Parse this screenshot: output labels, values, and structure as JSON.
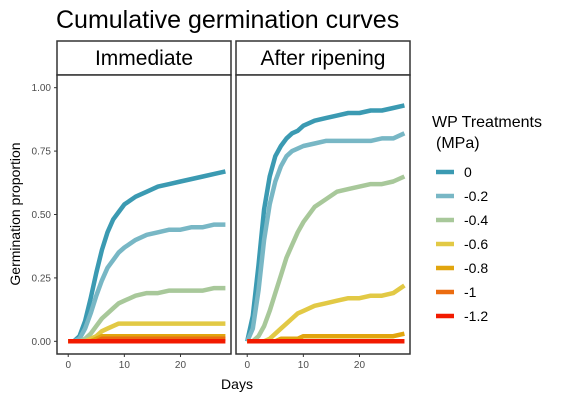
{
  "chart_data": {
    "type": "line",
    "title": "Cumulative germination curves",
    "xlabel": "Days",
    "ylabel": "Germination proportion",
    "xlim": [
      -2,
      29
    ],
    "ylim": [
      -0.05,
      1.05
    ],
    "x_ticks": [
      0,
      10,
      20
    ],
    "y_ticks": [
      0,
      0.25,
      0.5,
      0.75,
      1
    ],
    "y_tick_labels": [
      "0.00",
      "0.25",
      "0.50",
      "0.75",
      "1.00"
    ],
    "grid": false,
    "legend": {
      "title_line1": "WP Treatments",
      "title_line2": "(MPa)",
      "position": "right"
    },
    "days": [
      0,
      1,
      2,
      3,
      4,
      5,
      6,
      7,
      8,
      9,
      10,
      12,
      14,
      16,
      18,
      20,
      22,
      24,
      26,
      28
    ],
    "panels": [
      {
        "strip": "Immediate",
        "series": [
          {
            "name": "0",
            "color": "#3b9ab2",
            "values": [
              0,
              0,
              0.02,
              0.08,
              0.17,
              0.27,
              0.36,
              0.43,
              0.48,
              0.51,
              0.54,
              0.57,
              0.59,
              0.61,
              0.62,
              0.63,
              0.64,
              0.65,
              0.66,
              0.67
            ]
          },
          {
            "name": "-0.2",
            "color": "#78b7c5",
            "values": [
              0,
              0,
              0.01,
              0.05,
              0.11,
              0.18,
              0.24,
              0.29,
              0.32,
              0.35,
              0.37,
              0.4,
              0.42,
              0.43,
              0.44,
              0.44,
              0.45,
              0.45,
              0.46,
              0.46
            ]
          },
          {
            "name": "-0.4",
            "color": "#a8c89a",
            "values": [
              0,
              0,
              0,
              0.01,
              0.03,
              0.06,
              0.09,
              0.11,
              0.13,
              0.15,
              0.16,
              0.18,
              0.19,
              0.19,
              0.2,
              0.2,
              0.2,
              0.2,
              0.21,
              0.21
            ]
          },
          {
            "name": "-0.6",
            "color": "#e2c945",
            "values": [
              0,
              0,
              0,
              0,
              0.01,
              0.02,
              0.04,
              0.05,
              0.06,
              0.07,
              0.07,
              0.07,
              0.07,
              0.07,
              0.07,
              0.07,
              0.07,
              0.07,
              0.07,
              0.07
            ]
          },
          {
            "name": "-0.8",
            "color": "#e1a50e",
            "values": [
              0,
              0,
              0,
              0,
              0,
              0.01,
              0.02,
              0.02,
              0.02,
              0.02,
              0.02,
              0.02,
              0.02,
              0.02,
              0.02,
              0.02,
              0.02,
              0.02,
              0.02,
              0.02
            ]
          },
          {
            "name": "-1",
            "color": "#eb6c10",
            "values": [
              0,
              0,
              0,
              0,
              0,
              0,
              0.01,
              0.01,
              0.01,
              0.01,
              0.01,
              0.01,
              0.01,
              0.01,
              0.01,
              0.01,
              0.01,
              0.01,
              0.01,
              0.01
            ]
          },
          {
            "name": "-1.2",
            "color": "#f21a00",
            "values": [
              0,
              0,
              0,
              0,
              0,
              0,
              0,
              0,
              0,
              0,
              0,
              0,
              0,
              0,
              0,
              0,
              0,
              0,
              0,
              0
            ]
          }
        ]
      },
      {
        "strip": "After ripening",
        "series": [
          {
            "name": "0",
            "color": "#3b9ab2",
            "values": [
              0,
              0.1,
              0.3,
              0.52,
              0.65,
              0.73,
              0.77,
              0.8,
              0.82,
              0.83,
              0.85,
              0.87,
              0.88,
              0.89,
              0.9,
              0.9,
              0.91,
              0.91,
              0.92,
              0.93
            ]
          },
          {
            "name": "-0.2",
            "color": "#78b7c5",
            "values": [
              0,
              0.05,
              0.2,
              0.4,
              0.54,
              0.63,
              0.69,
              0.73,
              0.75,
              0.76,
              0.77,
              0.78,
              0.79,
              0.79,
              0.79,
              0.79,
              0.79,
              0.8,
              0.8,
              0.82
            ]
          },
          {
            "name": "-0.4",
            "color": "#a8c89a",
            "values": [
              0,
              0,
              0.02,
              0.06,
              0.12,
              0.19,
              0.26,
              0.33,
              0.38,
              0.43,
              0.47,
              0.53,
              0.56,
              0.59,
              0.6,
              0.61,
              0.62,
              0.62,
              0.63,
              0.65
            ]
          },
          {
            "name": "-0.6",
            "color": "#e2c945",
            "values": [
              0,
              0,
              0,
              0,
              0.01,
              0.03,
              0.05,
              0.07,
              0.09,
              0.11,
              0.12,
              0.14,
              0.15,
              0.16,
              0.17,
              0.17,
              0.18,
              0.18,
              0.19,
              0.22
            ]
          },
          {
            "name": "-0.8",
            "color": "#e1a50e",
            "values": [
              0,
              0,
              0,
              0,
              0,
              0,
              0.01,
              0.01,
              0.01,
              0.01,
              0.02,
              0.02,
              0.02,
              0.02,
              0.02,
              0.02,
              0.02,
              0.02,
              0.02,
              0.03
            ]
          },
          {
            "name": "-1",
            "color": "#eb6c10",
            "values": [
              0,
              0,
              0,
              0,
              0,
              0,
              0,
              0,
              0,
              0,
              0,
              0,
              0,
              0,
              0,
              0,
              0,
              0,
              0,
              0
            ]
          },
          {
            "name": "-1.2",
            "color": "#f21a00",
            "values": [
              0,
              0,
              0,
              0,
              0,
              0,
              0,
              0,
              0,
              0,
              0,
              0,
              0,
              0,
              0,
              0,
              0,
              0,
              0,
              0
            ]
          }
        ]
      }
    ]
  }
}
